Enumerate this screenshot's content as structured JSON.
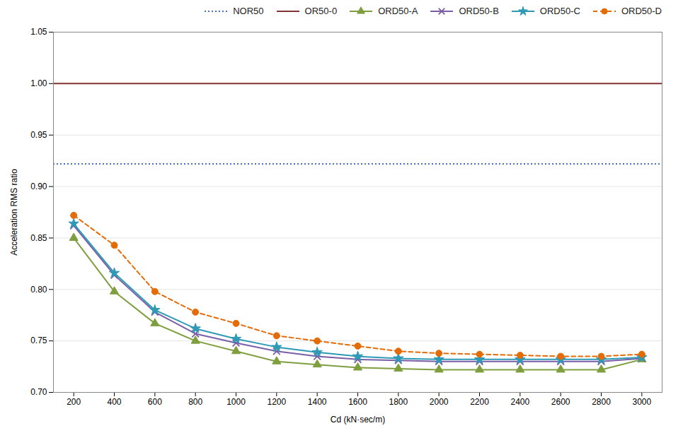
{
  "chart_data": {
    "type": "line",
    "xlabel": "Cd (kN·sec/m)",
    "ylabel": "Acceleration RMS ratio",
    "x": [
      200,
      400,
      600,
      800,
      1000,
      1200,
      1400,
      1600,
      1800,
      2000,
      2200,
      2400,
      2600,
      2800,
      3000
    ],
    "xlim": [
      100,
      3100
    ],
    "xticks": [
      200,
      400,
      600,
      800,
      1000,
      1200,
      1400,
      1600,
      1800,
      2000,
      2200,
      2400,
      2600,
      2800,
      3000
    ],
    "ylim": [
      0.7,
      1.05
    ],
    "yticks": [
      {
        "value": 0.7,
        "label": "0.70"
      },
      0.75,
      {
        "value": 0.8,
        "label": "0.80"
      },
      0.85,
      {
        "value": 0.9,
        "label": "0.90"
      },
      0.95,
      {
        "value": 1.0,
        "label": "1.00"
      },
      1.05
    ],
    "grid": true,
    "legend": "upper right",
    "series": [
      {
        "name": "NOR50",
        "type": "hline",
        "color": "#4472C4",
        "line_style": "dotted",
        "y": 0.922
      },
      {
        "name": "OR50-0",
        "type": "hline",
        "color": "#833333",
        "line_style": "solid",
        "y": 1.0
      },
      {
        "name": "ORD50-A",
        "type": "line",
        "color": "#7F9F3F",
        "line_style": "solid",
        "marker": "triangle",
        "values": [
          0.85,
          0.798,
          0.767,
          0.75,
          0.74,
          0.73,
          0.727,
          0.724,
          0.723,
          0.722,
          0.722,
          0.722,
          0.722,
          0.722,
          0.732
        ]
      },
      {
        "name": "ORD50-B",
        "type": "line",
        "color": "#7B5EA7",
        "line_style": "solid",
        "marker": "x",
        "values": [
          0.862,
          0.814,
          0.778,
          0.757,
          0.748,
          0.74,
          0.735,
          0.732,
          0.731,
          0.73,
          0.73,
          0.73,
          0.73,
          0.73,
          0.733
        ]
      },
      {
        "name": "ORD50-C",
        "type": "line",
        "color": "#2E9AB5",
        "line_style": "solid",
        "marker": "star",
        "values": [
          0.864,
          0.816,
          0.78,
          0.762,
          0.752,
          0.744,
          0.739,
          0.735,
          0.733,
          0.732,
          0.732,
          0.732,
          0.732,
          0.732,
          0.734
        ]
      },
      {
        "name": "ORD50-D",
        "type": "line",
        "color": "#E36C09",
        "line_style": "dashed",
        "marker": "circle",
        "values": [
          0.872,
          0.843,
          0.798,
          0.778,
          0.767,
          0.755,
          0.75,
          0.745,
          0.74,
          0.738,
          0.737,
          0.736,
          0.735,
          0.735,
          0.737
        ]
      }
    ]
  }
}
